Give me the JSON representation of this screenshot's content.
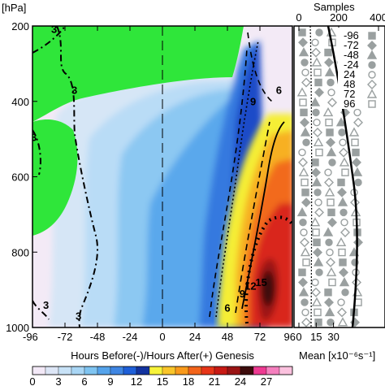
{
  "chart_data": [
    {
      "type": "heatmap",
      "ylabel_units": "[hPa]",
      "xlabel": "Hours Before(-)/Hours After(+) Genesis",
      "xticks": [
        -96,
        -72,
        -48,
        -24,
        0,
        24,
        48,
        72,
        96
      ],
      "yticks": [
        200,
        400,
        600,
        800,
        1000
      ],
      "xlim": [
        -96,
        96
      ],
      "ylim": [
        1000,
        200
      ],
      "grid": false,
      "reference_line_x": 0,
      "contour_labels": [
        {
          "text": "3",
          "x": -80,
          "y": 218
        },
        {
          "text": "3",
          "x": -65,
          "y": 380
        },
        {
          "text": "3",
          "x": -95,
          "y": 505
        },
        {
          "text": "3",
          "x": -86,
          "y": 950
        },
        {
          "text": "3",
          "x": -62,
          "y": 980
        },
        {
          "text": "6",
          "x": 86,
          "y": 380
        },
        {
          "text": "9",
          "x": 67,
          "y": 410
        },
        {
          "text": "6",
          "x": 48,
          "y": 958
        },
        {
          "text": "9",
          "x": 59,
          "y": 920
        },
        {
          "text": "12",
          "x": 65,
          "y": 900
        },
        {
          "text": "15",
          "x": 73,
          "y": 890
        }
      ],
      "colorbar": {
        "ticks": [
          "0",
          "3",
          "6",
          "9",
          "12",
          "15",
          "18",
          "21",
          "24",
          "27"
        ],
        "levels": [
          0,
          1.5,
          3,
          4.5,
          6,
          7.5,
          9,
          10.5,
          12,
          13.5,
          15,
          16.5,
          18,
          19.5,
          21,
          22.5,
          24,
          25.5,
          27,
          28.5,
          30
        ],
        "colors": [
          "#f3e9f7",
          "#dde6f6",
          "#c8e2f7",
          "#a9d6f5",
          "#7fc4f1",
          "#55a3eb",
          "#3f86e3",
          "#1e5fd8",
          "#12339f",
          "#f7f33a",
          "#f9c52a",
          "#f99a1c",
          "#f3641a",
          "#e73518",
          "#c81a14",
          "#9a1414",
          "#3d0c0c",
          "#ee3a92",
          "#f57fbe",
          "#fbc1de"
        ]
      }
    },
    {
      "type": "scatter",
      "xlabel": "Mean [x10⁻⁶s⁻¹]",
      "top_axis_label": "Samples",
      "xticks": [
        0,
        15,
        30
      ],
      "top_ticks": [
        0,
        200,
        400
      ],
      "legend": [
        "-96",
        "-72",
        "-48",
        "-24",
        "24",
        "48",
        "72",
        "96"
      ],
      "legend_placement": "top-right",
      "marker_color": "#9aa0a0",
      "profile_color": "#000000"
    }
  ]
}
